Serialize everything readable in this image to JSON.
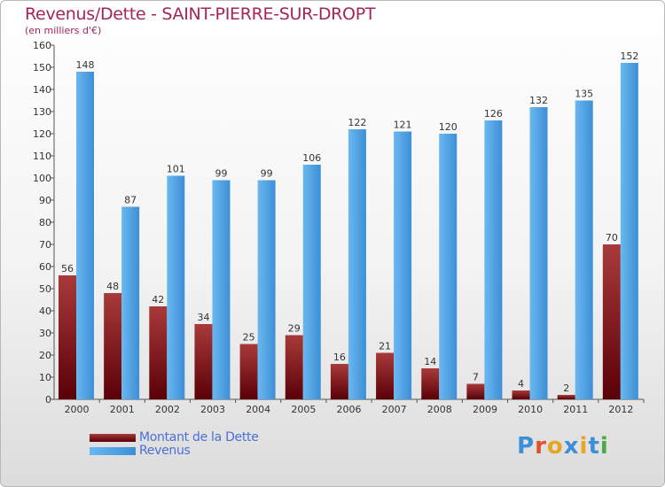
{
  "chart_data": {
    "type": "bar",
    "title": "Revenus/Dette - SAINT-PIERRE-SUR-DROPT",
    "subtitle": "(en milliers d'€)",
    "categories": [
      "2000",
      "2001",
      "2002",
      "2003",
      "2004",
      "2005",
      "2006",
      "2007",
      "2008",
      "2009",
      "2010",
      "2011",
      "2012"
    ],
    "series": [
      {
        "name": "Montant de la Dette",
        "values": [
          56,
          48,
          42,
          34,
          25,
          29,
          16,
          21,
          14,
          7,
          4,
          2,
          70
        ]
      },
      {
        "name": "Revenus",
        "values": [
          148,
          87,
          101,
          99,
          99,
          106,
          122,
          121,
          120,
          126,
          132,
          135,
          152
        ]
      }
    ],
    "ylim": [
      0,
      160
    ],
    "yticks": [
      0,
      10,
      20,
      30,
      40,
      50,
      60,
      70,
      80,
      90,
      100,
      110,
      120,
      130,
      140,
      150,
      160
    ],
    "grid": false,
    "legend": "bottom-left"
  },
  "colors": {
    "title": "#a3265a",
    "dette_top": "#a83a3a",
    "dette_bottom": "#5a0008",
    "revenus_light": "#6ab8f0",
    "revenus_dark": "#3d8fd6",
    "axis": "#555555",
    "legend_text": "#4a6fd8"
  },
  "logo": {
    "text": "Proxiti",
    "letter_colors": [
      "#3d8fd6",
      "#e0502c",
      "#e8a520",
      "#3d8fd6",
      "#e8a520",
      "#3d8fd6",
      "#4aa84a"
    ]
  }
}
